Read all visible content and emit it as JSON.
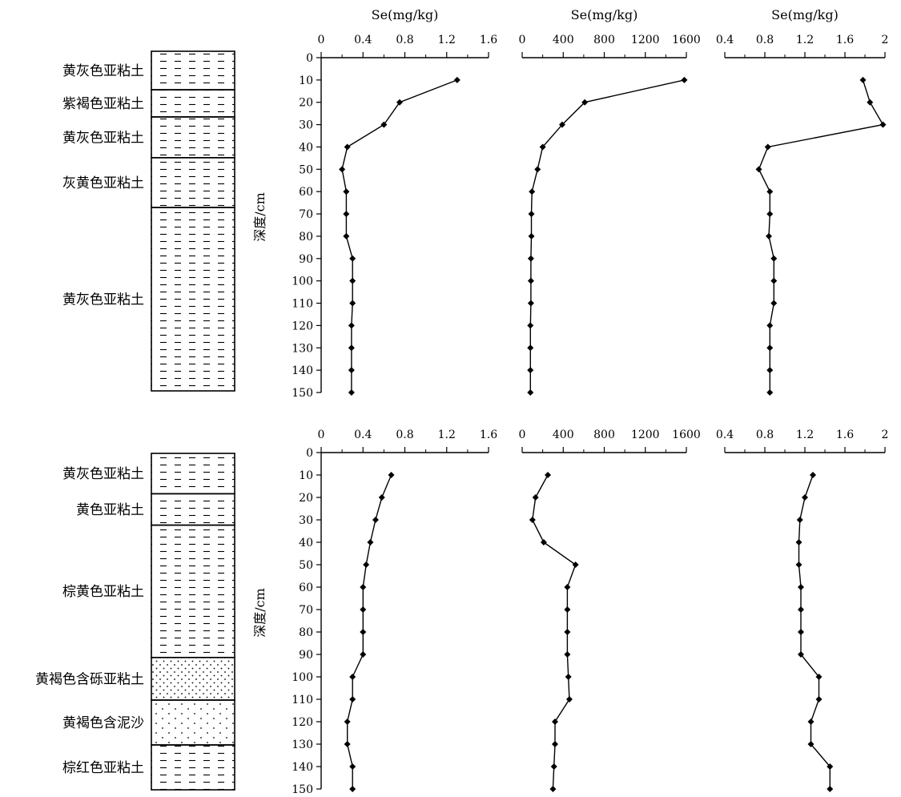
{
  "chart_data": [
    {
      "type": "line",
      "panel": "top",
      "ylabel": "深度/cm",
      "y_ticks": [
        0,
        10,
        20,
        30,
        40,
        50,
        60,
        70,
        80,
        90,
        100,
        110,
        120,
        130,
        140,
        150
      ],
      "ylim": [
        0,
        150
      ],
      "y_inverted": true,
      "grid": false,
      "columns": [
        {
          "xlabel": "Se(mg/kg)",
          "xlim": [
            0,
            1.6
          ],
          "x_ticks": [
            "0",
            "0.4",
            "0.8",
            "1.2",
            "1.6"
          ],
          "depth": [
            10,
            20,
            30,
            40,
            50,
            60,
            70,
            80,
            90,
            100,
            110,
            120,
            130,
            140,
            150
          ],
          "values": [
            1.3,
            0.75,
            0.6,
            0.25,
            0.2,
            0.24,
            0.24,
            0.24,
            0.3,
            0.3,
            0.3,
            0.29,
            0.29,
            0.29,
            0.29
          ]
        },
        {
          "xlabel": "Se(mg/kg)",
          "xlim": [
            0,
            1600
          ],
          "x_ticks": [
            "0",
            "400",
            "800",
            "1200",
            "1600"
          ],
          "depth": [
            10,
            20,
            30,
            40,
            50,
            60,
            70,
            80,
            90,
            100,
            110,
            120,
            130,
            140,
            150
          ],
          "values": [
            1580,
            610,
            390,
            200,
            150,
            95,
            90,
            90,
            85,
            85,
            85,
            80,
            80,
            80,
            80
          ]
        },
        {
          "xlabel": "Se(mg/kg)",
          "xlim": [
            0.4,
            2
          ],
          "x_ticks": [
            "0.4",
            "0.8",
            "1.2",
            "1.6",
            "2"
          ],
          "depth": [
            10,
            20,
            30,
            40,
            50,
            60,
            70,
            80,
            90,
            100,
            110,
            120,
            130,
            140,
            150
          ],
          "values": [
            1.78,
            1.85,
            1.98,
            0.83,
            0.74,
            0.85,
            0.85,
            0.84,
            0.89,
            0.89,
            0.89,
            0.85,
            0.85,
            0.85,
            0.85
          ]
        }
      ],
      "lithology": [
        {
          "label": "黄灰色亚粘土",
          "from": 0,
          "to": 17,
          "pattern": "dash"
        },
        {
          "label": "紫褐色亚粘土",
          "from": 17,
          "to": 29,
          "pattern": "dash"
        },
        {
          "label": "黄灰色亚粘土",
          "from": 29,
          "to": 47,
          "pattern": "dash"
        },
        {
          "label": "灰黄色亚粘土",
          "from": 47,
          "to": 69,
          "pattern": "dash"
        },
        {
          "label": "黄灰色亚粘土",
          "from": 69,
          "to": 150,
          "pattern": "dash"
        }
      ]
    },
    {
      "type": "line",
      "panel": "bottom",
      "ylabel": "深度/cm",
      "y_ticks": [
        0,
        10,
        20,
        30,
        40,
        50,
        60,
        70,
        80,
        90,
        100,
        110,
        120,
        130,
        140,
        150
      ],
      "ylim": [
        0,
        150
      ],
      "y_inverted": true,
      "grid": false,
      "columns": [
        {
          "xlabel": "",
          "xlim": [
            0,
            1.6
          ],
          "x_ticks": [
            "0",
            "0.4",
            "0.8",
            "1.2",
            "1.6"
          ],
          "depth": [
            10,
            20,
            30,
            40,
            50,
            60,
            70,
            80,
            90,
            100,
            110,
            120,
            130,
            140,
            150
          ],
          "values": [
            0.67,
            0.58,
            0.52,
            0.47,
            0.43,
            0.4,
            0.4,
            0.4,
            0.4,
            0.3,
            0.3,
            0.25,
            0.25,
            0.3,
            0.3
          ]
        },
        {
          "xlabel": "",
          "xlim": [
            0,
            1600
          ],
          "x_ticks": [
            "0",
            "400",
            "800",
            "1200",
            "1600"
          ],
          "depth": [
            10,
            20,
            30,
            40,
            50,
            60,
            70,
            80,
            90,
            100,
            110,
            120,
            130,
            140,
            150
          ],
          "values": [
            250,
            130,
            100,
            210,
            520,
            440,
            440,
            440,
            440,
            450,
            460,
            320,
            320,
            310,
            300
          ]
        },
        {
          "xlabel": "",
          "xlim": [
            0.4,
            2
          ],
          "x_ticks": [
            "0.4",
            "0.8",
            "1.2",
            "1.6",
            "2"
          ],
          "depth": [
            10,
            20,
            30,
            40,
            50,
            60,
            70,
            80,
            90,
            100,
            110,
            120,
            130,
            140,
            150
          ],
          "values": [
            1.28,
            1.2,
            1.15,
            1.14,
            1.14,
            1.16,
            1.16,
            1.16,
            1.16,
            1.34,
            1.34,
            1.26,
            1.26,
            1.45,
            1.45
          ]
        }
      ],
      "lithology": [
        {
          "label": "黄灰色亚粘土",
          "from": 0,
          "to": 18,
          "pattern": "dash"
        },
        {
          "label": "黄色亚粘土",
          "from": 18,
          "to": 32,
          "pattern": "dash"
        },
        {
          "label": "棕黄色亚粘土",
          "from": 32,
          "to": 91,
          "pattern": "dash"
        },
        {
          "label": "黄褐色含砾亚粘土",
          "from": 91,
          "to": 110,
          "pattern": "dense-dots"
        },
        {
          "label": "黄褐色含泥沙",
          "from": 110,
          "to": 130,
          "pattern": "sparse-dots"
        },
        {
          "label": "棕红色亚粘土",
          "from": 130,
          "to": 150,
          "pattern": "dash"
        }
      ]
    }
  ]
}
